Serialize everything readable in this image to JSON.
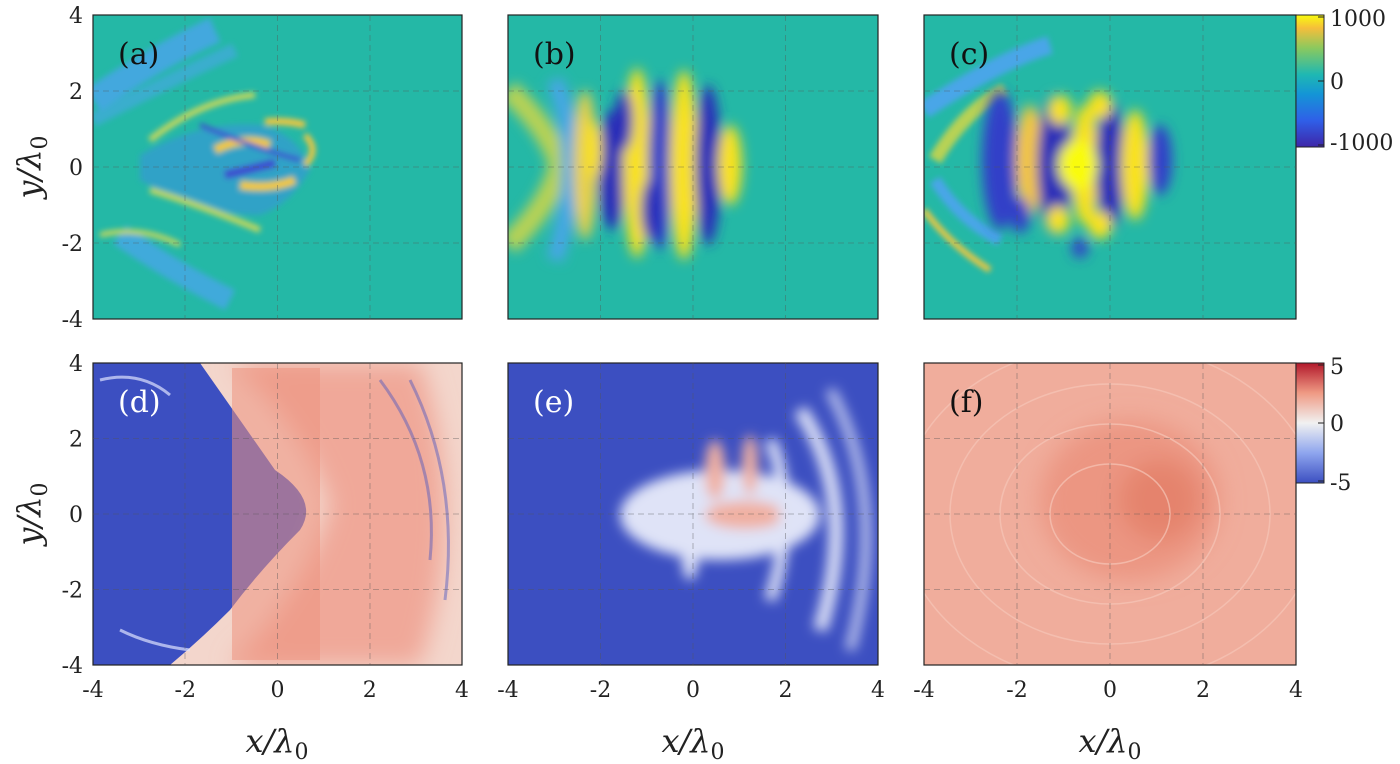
{
  "chart_data": [
    {
      "type": "heatmap",
      "panel": "(a)",
      "field": "bipolar",
      "xlim": [
        -4,
        4
      ],
      "ylim": [
        -4,
        4
      ],
      "xticks": [
        -4,
        -2,
        0,
        2,
        4
      ],
      "yticks": [
        -4,
        -2,
        0,
        2,
        4
      ],
      "clim": [
        -1000,
        1000
      ],
      "grid": true
    },
    {
      "type": "heatmap",
      "panel": "(b)",
      "field": "bipolar",
      "xlim": [
        -4,
        4
      ],
      "ylim": [
        -4,
        4
      ],
      "xticks": [
        -4,
        -2,
        0,
        2,
        4
      ],
      "yticks": [
        -4,
        -2,
        0,
        2,
        4
      ],
      "clim": [
        -1000,
        1000
      ],
      "grid": true
    },
    {
      "type": "heatmap",
      "panel": "(c)",
      "field": "bipolar",
      "xlim": [
        -4,
        4
      ],
      "ylim": [
        -4,
        4
      ],
      "xticks": [
        -4,
        -2,
        0,
        2,
        4
      ],
      "yticks": [
        -4,
        -2,
        0,
        2,
        4
      ],
      "clim": [
        -1000,
        1000
      ],
      "colorbar_ticks": [
        "1000",
        "0",
        "-1000"
      ],
      "grid": true
    },
    {
      "type": "heatmap",
      "panel": "(d)",
      "field": "density",
      "xlim": [
        -4,
        4
      ],
      "ylim": [
        -4,
        4
      ],
      "xticks": [
        -4,
        -2,
        0,
        2,
        4
      ],
      "yticks": [
        -4,
        -2,
        0,
        2,
        4
      ],
      "clim": [
        -5,
        5
      ],
      "grid": true
    },
    {
      "type": "heatmap",
      "panel": "(e)",
      "field": "density",
      "xlim": [
        -4,
        4
      ],
      "ylim": [
        -4,
        4
      ],
      "xticks": [
        -4,
        -2,
        0,
        2,
        4
      ],
      "yticks": [
        -4,
        -2,
        0,
        2,
        4
      ],
      "clim": [
        -5,
        5
      ],
      "grid": true
    },
    {
      "type": "heatmap",
      "panel": "(f)",
      "field": "density",
      "xlim": [
        -4,
        4
      ],
      "ylim": [
        -4,
        4
      ],
      "xticks": [
        -4,
        -2,
        0,
        2,
        4
      ],
      "yticks": [
        -4,
        -2,
        0,
        2,
        4
      ],
      "clim": [
        -5,
        5
      ],
      "colorbar_ticks": [
        "5",
        "0",
        "-5"
      ],
      "grid": true
    }
  ],
  "labels": {
    "ylabel_top": "y/λ",
    "ylabel_bottom": "y/λ",
    "ysub": "0",
    "xlabel": "x/λ",
    "xsub": "0"
  },
  "colors": {
    "parula_low": "#3e26a8",
    "parula_mid": "#1fb8b2",
    "parula_high": "#f9fb0e",
    "rdbu_low": "#3c4fc1",
    "rdbu_mid": "#f1f1f1",
    "rdbu_high": "#b2182b",
    "background_bipolar": "#24b8a6",
    "background_density": "#3c4fc1"
  }
}
